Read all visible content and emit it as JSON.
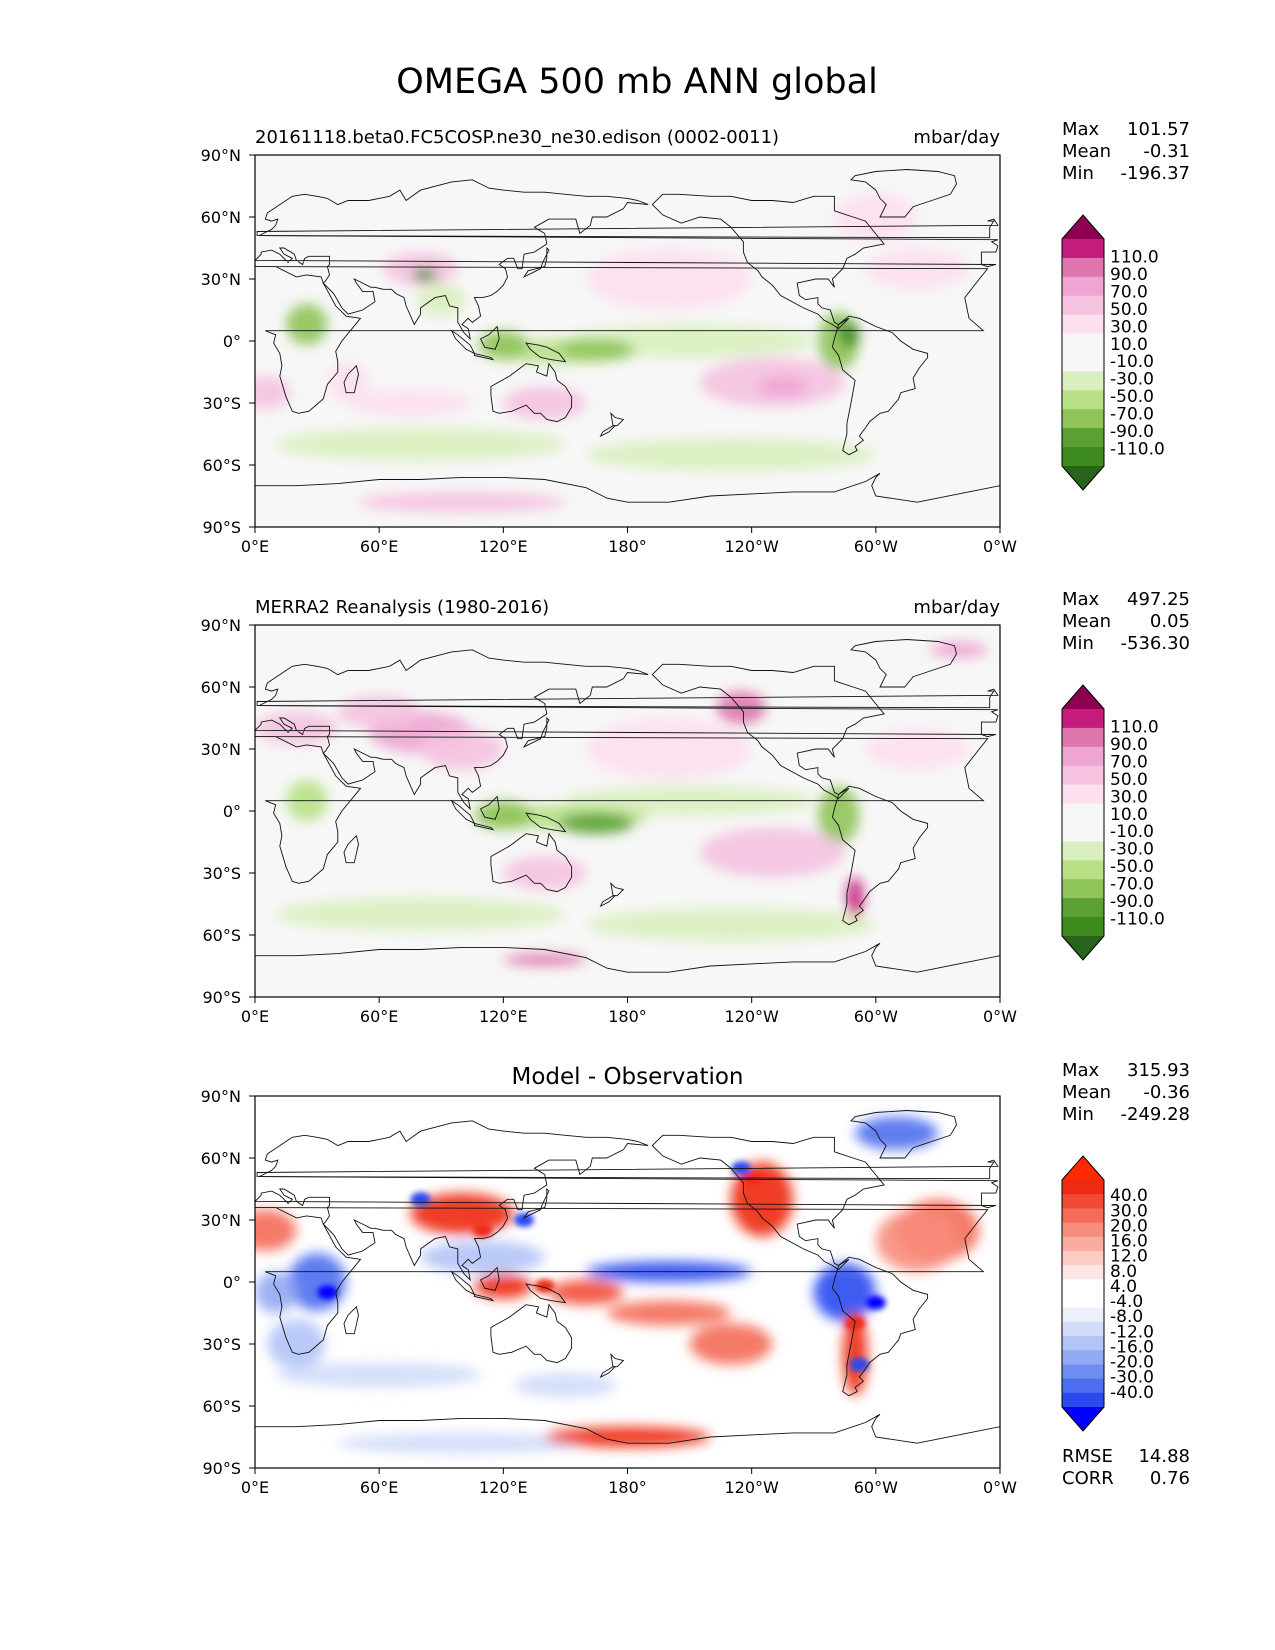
{
  "figure_title": "OMEGA 500 mb ANN global",
  "x_ticks": [
    "0°E",
    "60°E",
    "120°E",
    "180°",
    "120°W",
    "60°W",
    "0°W"
  ],
  "y_ticks": [
    "90°N",
    "60°N",
    "30°N",
    "0°",
    "30°S",
    "60°S",
    "90°S"
  ],
  "stat_labels": {
    "max": "Max",
    "mean": "Mean",
    "min": "Min",
    "rmse": "RMSE",
    "corr": "CORR"
  },
  "colors": {
    "field": [
      "#276419",
      "#3d8b1f",
      "#5aa032",
      "#8fc45a",
      "#b8e186",
      "#d9efbf",
      "#f7f7f7",
      "#f7f7f7",
      "#fde0ef",
      "#f5c2e0",
      "#eea5d3",
      "#de77ae",
      "#c51b7d",
      "#8e0152"
    ],
    "diff": [
      "#0000ff",
      "#2a4af0",
      "#4c6ff0",
      "#6f8ef2",
      "#92aaf4",
      "#b3c4f7",
      "#d2dcfa",
      "#ecf0fd",
      "#ffffff",
      "#ffffff",
      "#fde6e3",
      "#fbcbc4",
      "#f9ad9f",
      "#f78d7c",
      "#f46b57",
      "#f14a35",
      "#ee2a12",
      "#ff2a00"
    ],
    "land": "#111111"
  },
  "chart_data": [
    {
      "type": "heatmap",
      "panel": "test",
      "title_left": "20161118.beta0.FC5COSP.ne30_ne30.edison (0002-0011)",
      "title_right": "mbar/day",
      "x_ticks_deg": [
        0,
        60,
        120,
        180,
        240,
        300,
        360
      ],
      "y_ticks_deg": [
        90,
        60,
        30,
        0,
        -30,
        -60,
        -90
      ],
      "xlim": [
        0,
        360
      ],
      "ylim": [
        -90,
        90
      ],
      "stats": {
        "max": "101.57",
        "mean": "-0.31",
        "min": "-196.37"
      },
      "colorbar": {
        "levels": [
          "110.0",
          "90.0",
          "70.0",
          "50.0",
          "30.0",
          "10.0",
          "-10.0",
          "-30.0",
          "-50.0",
          "-70.0",
          "-90.0",
          "-110.0"
        ],
        "extend": "both",
        "cmap": "field"
      }
    },
    {
      "type": "heatmap",
      "panel": "reference",
      "title_left": "MERRA2 Reanalysis (1980-2016)",
      "title_right": "mbar/day",
      "x_ticks_deg": [
        0,
        60,
        120,
        180,
        240,
        300,
        360
      ],
      "y_ticks_deg": [
        90,
        60,
        30,
        0,
        -30,
        -60,
        -90
      ],
      "xlim": [
        0,
        360
      ],
      "ylim": [
        -90,
        90
      ],
      "stats": {
        "max": "497.25",
        "mean": "0.05",
        "min": "-536.30"
      },
      "colorbar": {
        "levels": [
          "110.0",
          "90.0",
          "70.0",
          "50.0",
          "30.0",
          "10.0",
          "-10.0",
          "-30.0",
          "-50.0",
          "-70.0",
          "-90.0",
          "-110.0"
        ],
        "extend": "both",
        "cmap": "field"
      }
    },
    {
      "type": "heatmap",
      "panel": "difference",
      "title_center": "Model - Observation",
      "x_ticks_deg": [
        0,
        60,
        120,
        180,
        240,
        300,
        360
      ],
      "y_ticks_deg": [
        90,
        60,
        30,
        0,
        -30,
        -60,
        -90
      ],
      "xlim": [
        0,
        360
      ],
      "ylim": [
        -90,
        90
      ],
      "stats": {
        "max": "315.93",
        "mean": "-0.36",
        "min": "-249.28",
        "rmse": "14.88",
        "corr": "0.76"
      },
      "colorbar": {
        "levels": [
          "40.0",
          "30.0",
          "20.0",
          "16.0",
          "12.0",
          "8.0",
          "4.0",
          "-4.0",
          "-8.0",
          "-12.0",
          "-16.0",
          "-20.0",
          "-30.0",
          "-40.0"
        ],
        "extend": "both",
        "cmap": "diff"
      }
    }
  ]
}
